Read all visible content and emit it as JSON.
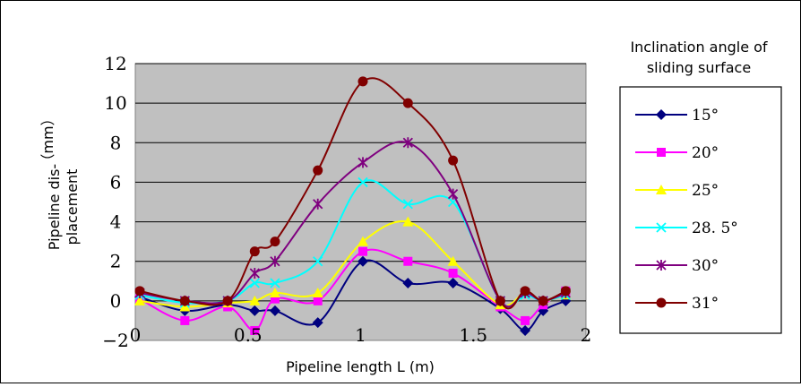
{
  "chart_data": {
    "type": "line",
    "xlabel": "Pipeline length L (m)",
    "ylabel_lines": [
      "Pipeline dis-",
      "placement"
    ],
    "ylabel_unit": "（mm）",
    "xlim": [
      0,
      2
    ],
    "ylim": [
      -2,
      12
    ],
    "xticks": [
      "0",
      "0.5",
      "1",
      "1.5",
      "2"
    ],
    "yticks": [
      "−2",
      "0",
      "2",
      "4",
      "6",
      "8",
      "10",
      "12"
    ],
    "grid": "horizontal",
    "legend": {
      "title_lines": [
        "Inclination angle of",
        "sliding surface"
      ],
      "placement": "right"
    },
    "series": [
      {
        "name": "15°",
        "color": "#00007f",
        "marker": "diamond",
        "x": [
          0.02,
          0.22,
          0.41,
          0.53,
          0.62,
          0.81,
          1.01,
          1.21,
          1.41,
          1.62,
          1.73,
          1.81,
          1.91
        ],
        "y": [
          0.2,
          -0.5,
          -0.2,
          -0.5,
          -0.5,
          -1.1,
          2.0,
          0.9,
          0.9,
          -0.4,
          -1.5,
          -0.5,
          0.0
        ]
      },
      {
        "name": "20°",
        "color": "#ff00ff",
        "marker": "square",
        "x": [
          0.02,
          0.22,
          0.41,
          0.53,
          0.62,
          0.81,
          1.01,
          1.21,
          1.41,
          1.62,
          1.73,
          1.81,
          1.91
        ],
        "y": [
          0.1,
          -1.0,
          -0.3,
          -1.5,
          0.1,
          0.0,
          2.5,
          2.0,
          1.4,
          -0.3,
          -1.0,
          -0.2,
          0.5
        ]
      },
      {
        "name": "25°",
        "color": "#ffff00",
        "marker": "triangle",
        "x": [
          0.02,
          0.22,
          0.41,
          0.53,
          0.62,
          0.81,
          1.01,
          1.21,
          1.41,
          1.62,
          1.73,
          1.81,
          1.91
        ],
        "y": [
          0.0,
          -0.3,
          -0.1,
          0.0,
          0.4,
          0.4,
          3.0,
          4.0,
          2.0,
          -0.2,
          0.4,
          0.0,
          0.3
        ]
      },
      {
        "name": "28. 5°",
        "color": "#00ffff",
        "marker": "x",
        "x": [
          0.02,
          0.22,
          0.41,
          0.53,
          0.62,
          0.81,
          1.01,
          1.21,
          1.41,
          1.62,
          1.73,
          1.81,
          1.91
        ],
        "y": [
          0.3,
          -0.1,
          0.0,
          0.9,
          0.9,
          2.0,
          6.0,
          4.9,
          5.0,
          0.0,
          0.3,
          0.0,
          0.3
        ]
      },
      {
        "name": "30°",
        "color": "#7f007f",
        "marker": "asterisk",
        "x": [
          0.02,
          0.22,
          0.41,
          0.53,
          0.62,
          0.81,
          1.01,
          1.21,
          1.41,
          1.62,
          1.73,
          1.81,
          1.91
        ],
        "y": [
          0.4,
          0.0,
          0.0,
          1.4,
          2.0,
          4.9,
          7.0,
          8.0,
          5.4,
          0.0,
          0.4,
          0.0,
          0.4
        ]
      },
      {
        "name": "31°",
        "color": "#800000",
        "marker": "circle",
        "x": [
          0.02,
          0.22,
          0.41,
          0.53,
          0.62,
          0.81,
          1.01,
          1.21,
          1.41,
          1.62,
          1.73,
          1.81,
          1.91
        ],
        "y": [
          0.5,
          0.0,
          0.0,
          2.5,
          3.0,
          6.6,
          11.1,
          10.0,
          7.1,
          0.0,
          0.5,
          0.0,
          0.5
        ]
      }
    ]
  }
}
